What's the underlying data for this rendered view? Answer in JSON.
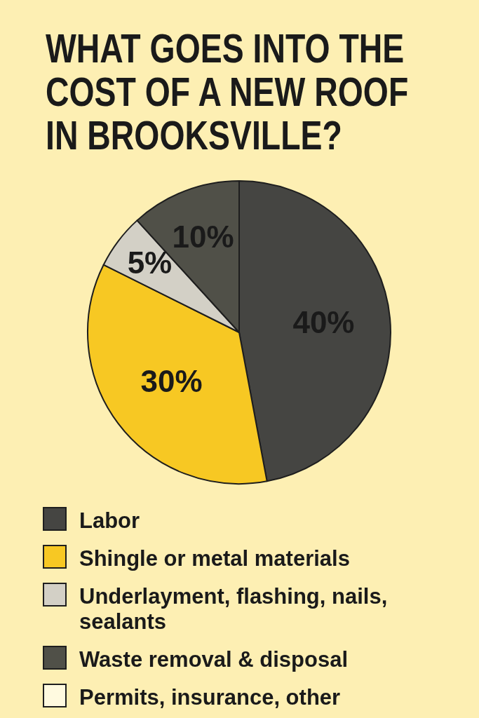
{
  "chart_data": {
    "type": "pie",
    "title": "WHAT GOES INTO THE COST OF A NEW ROOF IN BROOKSVILLE?",
    "categories": [
      "Labor",
      "Shingle or metal materials",
      "Underlayment, flashing, nails, sealants",
      "Waste removal & disposal",
      "Permits, insurance, other"
    ],
    "values": [
      40,
      30,
      5,
      10,
      null
    ],
    "colors": [
      "#454542",
      "#f7c823",
      "#d3d0c6",
      "#505048",
      "#fffae0"
    ],
    "value_labels": [
      "40%",
      "30%",
      "5%",
      "10%",
      null
    ],
    "legend": "bottom"
  }
}
